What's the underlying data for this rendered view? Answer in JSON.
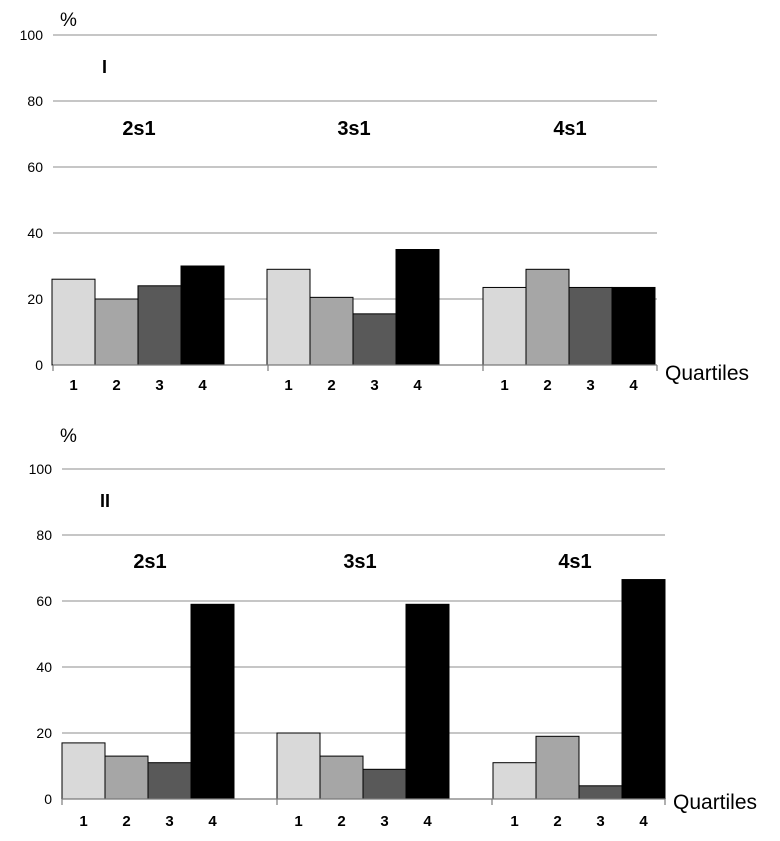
{
  "figure": {
    "unit_label": "%",
    "x_axis_label": "Quartiles"
  },
  "colors": {
    "q1": "#d9d9d9",
    "q2": "#a6a6a6",
    "q3": "#595959",
    "q4": "#000000",
    "gridline": "#8c8c8c"
  },
  "chart_data": [
    {
      "type": "bar",
      "panel": "I",
      "ylabel": "%",
      "xlabel": "Quartiles",
      "ylim": [
        0,
        100
      ],
      "yticks": [
        0,
        20,
        40,
        60,
        80,
        100
      ],
      "grid": true,
      "categories": [
        "1",
        "2",
        "3",
        "4"
      ],
      "groups": [
        {
          "name": "2s1",
          "values": [
            26,
            20,
            24,
            30
          ]
        },
        {
          "name": "3s1",
          "values": [
            29,
            20.5,
            15.5,
            35
          ]
        },
        {
          "name": "4s1",
          "values": [
            23.5,
            29,
            23.5,
            23.5
          ]
        }
      ]
    },
    {
      "type": "bar",
      "panel": "II",
      "ylabel": "%",
      "xlabel": "Quartiles",
      "ylim": [
        0,
        100
      ],
      "yticks": [
        0,
        20,
        40,
        60,
        80,
        100
      ],
      "grid": true,
      "categories": [
        "1",
        "2",
        "3",
        "4"
      ],
      "groups": [
        {
          "name": "2s1",
          "values": [
            17,
            13,
            11,
            59
          ]
        },
        {
          "name": "3s1",
          "values": [
            20,
            13,
            9,
            59
          ]
        },
        {
          "name": "4s1",
          "values": [
            11,
            19,
            4,
            66.5
          ]
        }
      ]
    }
  ]
}
